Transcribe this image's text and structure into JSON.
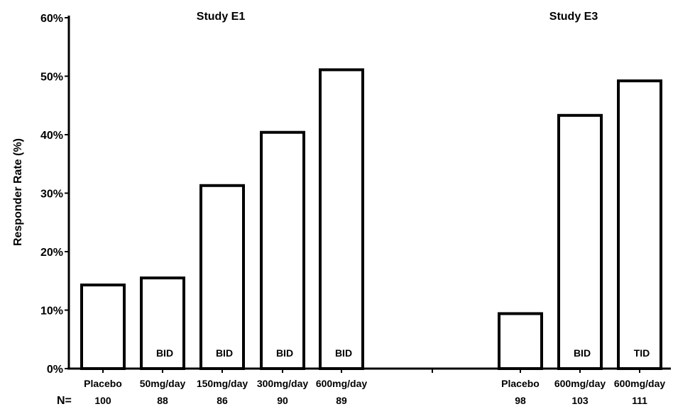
{
  "chart_data": {
    "type": "bar",
    "ylabel": "Responder Rate (%)",
    "ylim": [
      0,
      60
    ],
    "yticks": [
      "0%",
      "10%",
      "20%",
      "30%",
      "40%",
      "50%",
      "60%"
    ],
    "n_prefix": "N=",
    "groups": [
      {
        "title": "Study E1",
        "bars": [
          {
            "category": "Placebo",
            "n": "100",
            "value": 14.3,
            "note": ""
          },
          {
            "category": "50mg/day",
            "n": "88",
            "value": 15.5,
            "note": "BID"
          },
          {
            "category": "150mg/day",
            "n": "86",
            "value": 31.3,
            "note": "BID"
          },
          {
            "category": "300mg/day",
            "n": "90",
            "value": 40.4,
            "note": "BID"
          },
          {
            "category": "600mg/day",
            "n": "89",
            "value": 51.1,
            "note": "BID"
          }
        ]
      },
      {
        "title": "Study E3",
        "bars": [
          {
            "category": "Placebo",
            "n": "98",
            "value": 9.4,
            "note": ""
          },
          {
            "category": "600mg/day",
            "n": "103",
            "value": 43.3,
            "note": "BID"
          },
          {
            "category": "600mg/day",
            "n": "111",
            "value": 49.2,
            "note": "TID"
          }
        ]
      }
    ]
  }
}
